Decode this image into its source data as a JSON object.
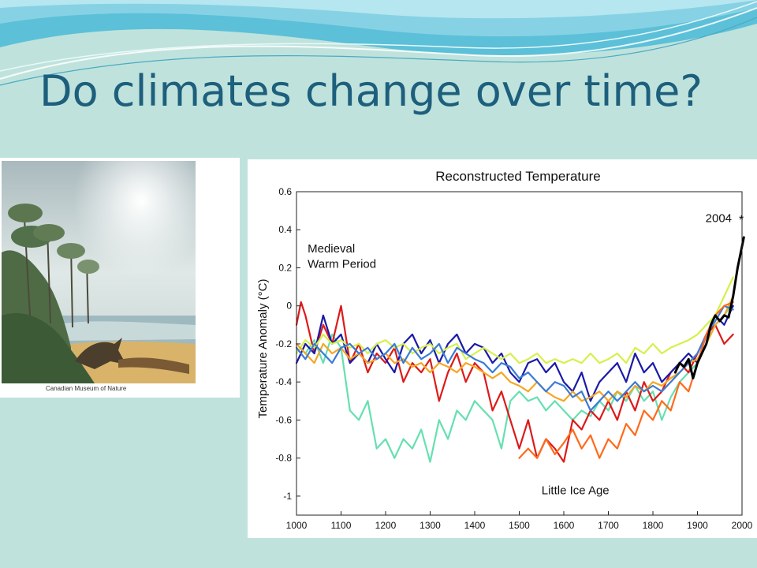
{
  "slide": {
    "title": "Do climates change over time?",
    "background": "#bfe3dc",
    "title_color": "#1d5f7c"
  },
  "photo": {
    "caption": "Canadian Museum of Nature",
    "description_icon": "prehistoric-landscape-image"
  },
  "chart_data": {
    "type": "line",
    "title": "Reconstructed Temperature",
    "xlabel": "",
    "ylabel": "Temperature Anomaly (°C)",
    "xlim": [
      1000,
      2000
    ],
    "ylim": [
      -1.1,
      0.6
    ],
    "xticks": [
      1000,
      1100,
      1200,
      1300,
      1400,
      1500,
      1600,
      1700,
      1800,
      1900,
      2000
    ],
    "yticks": [
      0.6,
      0.4,
      0.2,
      0,
      -0.2,
      -0.4,
      -0.6,
      -0.8,
      -1
    ],
    "ytick_labels": [
      "0.6",
      "0.4",
      "0.2",
      "0",
      "-0.2",
      "-0.4",
      "-0.6",
      "-0.8",
      "-1"
    ],
    "grid": false,
    "annotations": [
      {
        "text": "Medieval",
        "x": 1025,
        "y": 0.28
      },
      {
        "text": "Warm Period",
        "x": 1025,
        "y": 0.2
      },
      {
        "text": "Little Ice Age",
        "x": 1550,
        "y": -0.99
      },
      {
        "text": "2004",
        "x": 1918,
        "y": 0.44
      },
      {
        "text": "*",
        "x": 1993,
        "y": 0.43
      }
    ],
    "series": [
      {
        "color": "#66e0b0",
        "x": [
          1000,
          1020,
          1040,
          1060,
          1080,
          1100,
          1120,
          1140,
          1160,
          1180,
          1200,
          1220,
          1240,
          1260,
          1280,
          1300,
          1320,
          1340,
          1360,
          1380,
          1400,
          1420,
          1440,
          1460,
          1480,
          1500,
          1520,
          1540,
          1560,
          1580,
          1600,
          1620,
          1640,
          1660,
          1680,
          1700,
          1720,
          1740,
          1760,
          1780,
          1800,
          1820,
          1840,
          1860,
          1880,
          1900,
          1920,
          1940,
          1960,
          1980
        ],
        "y": [
          -0.2,
          -0.25,
          -0.18,
          -0.3,
          -0.15,
          -0.22,
          -0.55,
          -0.6,
          -0.5,
          -0.75,
          -0.7,
          -0.8,
          -0.7,
          -0.75,
          -0.65,
          -0.82,
          -0.6,
          -0.7,
          -0.55,
          -0.6,
          -0.5,
          -0.55,
          -0.6,
          -0.75,
          -0.5,
          -0.45,
          -0.5,
          -0.48,
          -0.55,
          -0.5,
          -0.55,
          -0.6,
          -0.55,
          -0.58,
          -0.5,
          -0.55,
          -0.45,
          -0.5,
          -0.42,
          -0.5,
          -0.45,
          -0.6,
          -0.48,
          -0.4,
          -0.35,
          -0.3,
          -0.2,
          -0.1,
          -0.05,
          0.02
        ]
      },
      {
        "color": "#dd1a1a",
        "x": [
          1000,
          1010,
          1020,
          1040,
          1060,
          1080,
          1100,
          1120,
          1140,
          1160,
          1180,
          1200,
          1220,
          1240,
          1260,
          1280,
          1300,
          1320,
          1340,
          1360,
          1380,
          1400,
          1420,
          1440,
          1460,
          1480,
          1500,
          1520,
          1540,
          1560,
          1580,
          1600,
          1620,
          1640,
          1660,
          1680,
          1700,
          1720,
          1740,
          1760,
          1780,
          1800,
          1820,
          1840,
          1860,
          1880,
          1900,
          1920,
          1940,
          1960,
          1980
        ],
        "y": [
          -0.1,
          0.02,
          -0.05,
          -0.25,
          -0.1,
          -0.2,
          0.0,
          -0.3,
          -0.2,
          -0.35,
          -0.25,
          -0.3,
          -0.22,
          -0.4,
          -0.3,
          -0.35,
          -0.28,
          -0.5,
          -0.35,
          -0.25,
          -0.4,
          -0.3,
          -0.35,
          -0.55,
          -0.45,
          -0.6,
          -0.75,
          -0.6,
          -0.8,
          -0.7,
          -0.75,
          -0.82,
          -0.6,
          -0.65,
          -0.55,
          -0.6,
          -0.5,
          -0.6,
          -0.45,
          -0.55,
          -0.4,
          -0.5,
          -0.45,
          -0.35,
          -0.3,
          -0.35,
          -0.25,
          -0.15,
          -0.1,
          -0.2,
          -0.15
        ]
      },
      {
        "color": "#1a1aa8",
        "x": [
          1000,
          1020,
          1040,
          1060,
          1080,
          1100,
          1120,
          1140,
          1160,
          1180,
          1200,
          1220,
          1240,
          1260,
          1280,
          1300,
          1320,
          1340,
          1360,
          1380,
          1400,
          1420,
          1440,
          1460,
          1480,
          1500,
          1520,
          1540,
          1560,
          1580,
          1600,
          1620,
          1640,
          1660,
          1680,
          1700,
          1720,
          1740,
          1760,
          1780,
          1800,
          1820,
          1840,
          1860,
          1880,
          1900,
          1920,
          1940,
          1960,
          1980
        ],
        "y": [
          -0.3,
          -0.2,
          -0.25,
          -0.05,
          -0.2,
          -0.15,
          -0.3,
          -0.25,
          -0.3,
          -0.2,
          -0.28,
          -0.35,
          -0.2,
          -0.15,
          -0.25,
          -0.18,
          -0.3,
          -0.2,
          -0.15,
          -0.25,
          -0.2,
          -0.22,
          -0.3,
          -0.25,
          -0.35,
          -0.4,
          -0.3,
          -0.28,
          -0.35,
          -0.3,
          -0.4,
          -0.45,
          -0.35,
          -0.5,
          -0.4,
          -0.35,
          -0.3,
          -0.4,
          -0.25,
          -0.35,
          -0.3,
          -0.4,
          -0.35,
          -0.3,
          -0.25,
          -0.3,
          -0.15,
          -0.05,
          -0.1,
          0.0
        ]
      },
      {
        "color": "#d6f04a",
        "x": [
          1000,
          1020,
          1040,
          1060,
          1080,
          1100,
          1120,
          1140,
          1160,
          1180,
          1200,
          1220,
          1240,
          1260,
          1280,
          1300,
          1320,
          1340,
          1360,
          1380,
          1400,
          1420,
          1440,
          1460,
          1480,
          1500,
          1520,
          1540,
          1560,
          1580,
          1600,
          1620,
          1640,
          1660,
          1680,
          1700,
          1720,
          1740,
          1760,
          1780,
          1800,
          1820,
          1840,
          1860,
          1880,
          1900,
          1920,
          1940,
          1960,
          1980
        ],
        "y": [
          -0.25,
          -0.18,
          -0.22,
          -0.15,
          -0.2,
          -0.18,
          -0.22,
          -0.2,
          -0.25,
          -0.2,
          -0.18,
          -0.22,
          -0.2,
          -0.25,
          -0.22,
          -0.2,
          -0.25,
          -0.22,
          -0.2,
          -0.28,
          -0.25,
          -0.22,
          -0.25,
          -0.28,
          -0.25,
          -0.3,
          -0.28,
          -0.25,
          -0.3,
          -0.28,
          -0.3,
          -0.28,
          -0.3,
          -0.25,
          -0.3,
          -0.28,
          -0.25,
          -0.3,
          -0.22,
          -0.25,
          -0.2,
          -0.25,
          -0.22,
          -0.2,
          -0.18,
          -0.15,
          -0.1,
          -0.05,
          0.05,
          0.15
        ]
      },
      {
        "color": "#f5a623",
        "x": [
          1000,
          1020,
          1040,
          1060,
          1080,
          1100,
          1120,
          1140,
          1160,
          1180,
          1200,
          1220,
          1240,
          1260,
          1280,
          1300,
          1320,
          1340,
          1360,
          1380,
          1400,
          1420,
          1440,
          1460,
          1480,
          1500,
          1520,
          1540,
          1560,
          1580,
          1600,
          1620,
          1640,
          1660,
          1680,
          1700,
          1720,
          1740,
          1760,
          1780,
          1800,
          1820,
          1840,
          1860,
          1880,
          1900,
          1920,
          1940,
          1960,
          1980
        ],
        "y": [
          -0.2,
          -0.25,
          -0.3,
          -0.2,
          -0.25,
          -0.22,
          -0.28,
          -0.25,
          -0.3,
          -0.28,
          -0.25,
          -0.3,
          -0.28,
          -0.32,
          -0.3,
          -0.35,
          -0.3,
          -0.32,
          -0.35,
          -0.3,
          -0.32,
          -0.35,
          -0.38,
          -0.35,
          -0.4,
          -0.42,
          -0.45,
          -0.4,
          -0.45,
          -0.48,
          -0.5,
          -0.45,
          -0.5,
          -0.48,
          -0.45,
          -0.5,
          -0.45,
          -0.48,
          -0.42,
          -0.45,
          -0.4,
          -0.42,
          -0.38,
          -0.35,
          -0.3,
          -0.28,
          -0.2,
          -0.1,
          -0.05,
          0.05
        ]
      },
      {
        "color": "#3a7bd5",
        "x": [
          1000,
          1020,
          1040,
          1060,
          1080,
          1100,
          1120,
          1140,
          1160,
          1180,
          1200,
          1220,
          1240,
          1260,
          1280,
          1300,
          1320,
          1340,
          1360,
          1380,
          1400,
          1420,
          1440,
          1460,
          1480,
          1500,
          1520,
          1540,
          1560,
          1580,
          1600,
          1620,
          1640,
          1660,
          1680,
          1700,
          1720,
          1740,
          1760,
          1780,
          1800,
          1820,
          1840,
          1860,
          1880,
          1900,
          1920,
          1940,
          1960,
          1980
        ],
        "y": [
          -0.22,
          -0.28,
          -0.2,
          -0.25,
          -0.3,
          -0.22,
          -0.2,
          -0.25,
          -0.22,
          -0.28,
          -0.25,
          -0.2,
          -0.3,
          -0.22,
          -0.28,
          -0.25,
          -0.2,
          -0.3,
          -0.22,
          -0.25,
          -0.28,
          -0.3,
          -0.35,
          -0.3,
          -0.32,
          -0.38,
          -0.35,
          -0.4,
          -0.45,
          -0.4,
          -0.42,
          -0.48,
          -0.45,
          -0.55,
          -0.5,
          -0.45,
          -0.5,
          -0.45,
          -0.4,
          -0.45,
          -0.42,
          -0.45,
          -0.4,
          -0.35,
          -0.3,
          -0.25,
          -0.15,
          -0.08,
          0.0,
          -0.02
        ]
      },
      {
        "color": "#ff6a1a",
        "x": [
          1500,
          1520,
          1540,
          1560,
          1580,
          1600,
          1620,
          1640,
          1660,
          1680,
          1700,
          1720,
          1740,
          1760,
          1780,
          1800,
          1820,
          1840,
          1860,
          1880,
          1900,
          1920,
          1940,
          1960,
          1980
        ],
        "y": [
          -0.8,
          -0.75,
          -0.8,
          -0.7,
          -0.78,
          -0.72,
          -0.65,
          -0.75,
          -0.68,
          -0.8,
          -0.7,
          -0.75,
          -0.62,
          -0.68,
          -0.55,
          -0.6,
          -0.5,
          -0.55,
          -0.4,
          -0.45,
          -0.3,
          -0.15,
          -0.05,
          0.0,
          0.02
        ]
      },
      {
        "color": "#000000",
        "x": [
          1850,
          1860,
          1870,
          1880,
          1890,
          1900,
          1910,
          1920,
          1930,
          1940,
          1950,
          1960,
          1970,
          1980,
          1990,
          2004
        ],
        "y": [
          -0.35,
          -0.3,
          -0.32,
          -0.28,
          -0.38,
          -0.3,
          -0.25,
          -0.2,
          -0.1,
          -0.05,
          -0.08,
          -0.05,
          -0.06,
          0.05,
          0.2,
          0.36
        ]
      }
    ]
  }
}
